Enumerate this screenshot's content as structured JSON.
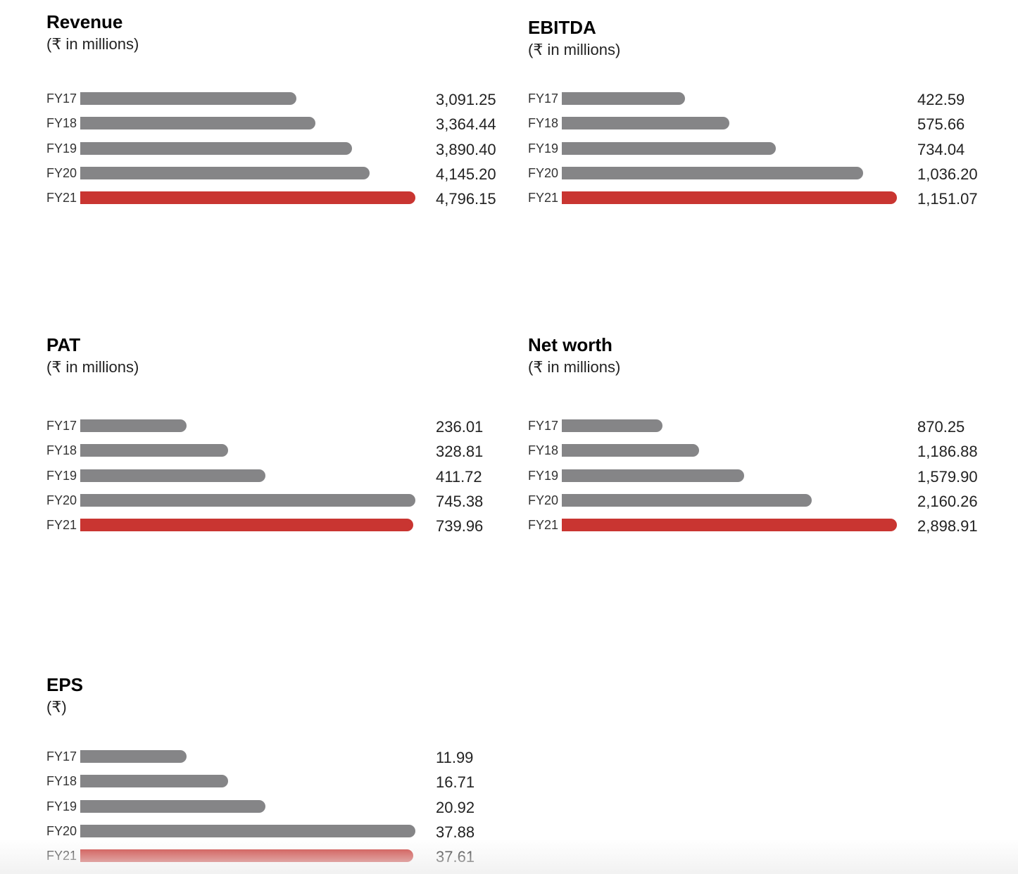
{
  "colors": {
    "bar_default": "#858587",
    "bar_highlight": "#c93531"
  },
  "chart_data": [
    {
      "type": "bar",
      "orientation": "horizontal",
      "title": "Revenue",
      "subtitle": "(₹ in millions)",
      "categories": [
        "FY17",
        "FY18",
        "FY19",
        "FY20",
        "FY21"
      ],
      "values": [
        3091.25,
        3364.44,
        3890.4,
        4145.2,
        4796.15
      ],
      "value_labels": [
        "3,091.25",
        "3,364.44",
        "3,890.40",
        "4,145.20",
        "4,796.15"
      ],
      "highlight_category": "FY21"
    },
    {
      "type": "bar",
      "orientation": "horizontal",
      "title": "EBITDA",
      "subtitle": "(₹ in millions)",
      "categories": [
        "FY17",
        "FY18",
        "FY19",
        "FY20",
        "FY21"
      ],
      "values": [
        422.59,
        575.66,
        734.04,
        1036.2,
        1151.07
      ],
      "value_labels": [
        "422.59",
        "575.66",
        "734.04",
        "1,036.20",
        "1,151.07"
      ],
      "highlight_category": "FY21"
    },
    {
      "type": "bar",
      "orientation": "horizontal",
      "title": "PAT",
      "subtitle": "(₹ in millions)",
      "categories": [
        "FY17",
        "FY18",
        "FY19",
        "FY20",
        "FY21"
      ],
      "values": [
        236.01,
        328.81,
        411.72,
        745.38,
        739.96
      ],
      "value_labels": [
        "236.01",
        "328.81",
        "411.72",
        "745.38",
        "739.96"
      ],
      "highlight_category": "FY21"
    },
    {
      "type": "bar",
      "orientation": "horizontal",
      "title": "Net worth",
      "subtitle": "(₹ in millions)",
      "categories": [
        "FY17",
        "FY18",
        "FY19",
        "FY20",
        "FY21"
      ],
      "values": [
        870.25,
        1186.88,
        1579.9,
        2160.26,
        2898.91
      ],
      "value_labels": [
        "870.25",
        "1,186.88",
        "1,579.90",
        "2,160.26",
        "2,898.91"
      ],
      "highlight_category": "FY21"
    },
    {
      "type": "bar",
      "orientation": "horizontal",
      "title": "EPS",
      "subtitle": "(₹)",
      "categories": [
        "FY17",
        "FY18",
        "FY19",
        "FY20",
        "FY21"
      ],
      "values": [
        11.99,
        16.71,
        20.92,
        37.88,
        37.61
      ],
      "value_labels": [
        "11.99",
        "16.71",
        "20.92",
        "37.88",
        "37.61"
      ],
      "highlight_category": "FY21"
    }
  ]
}
